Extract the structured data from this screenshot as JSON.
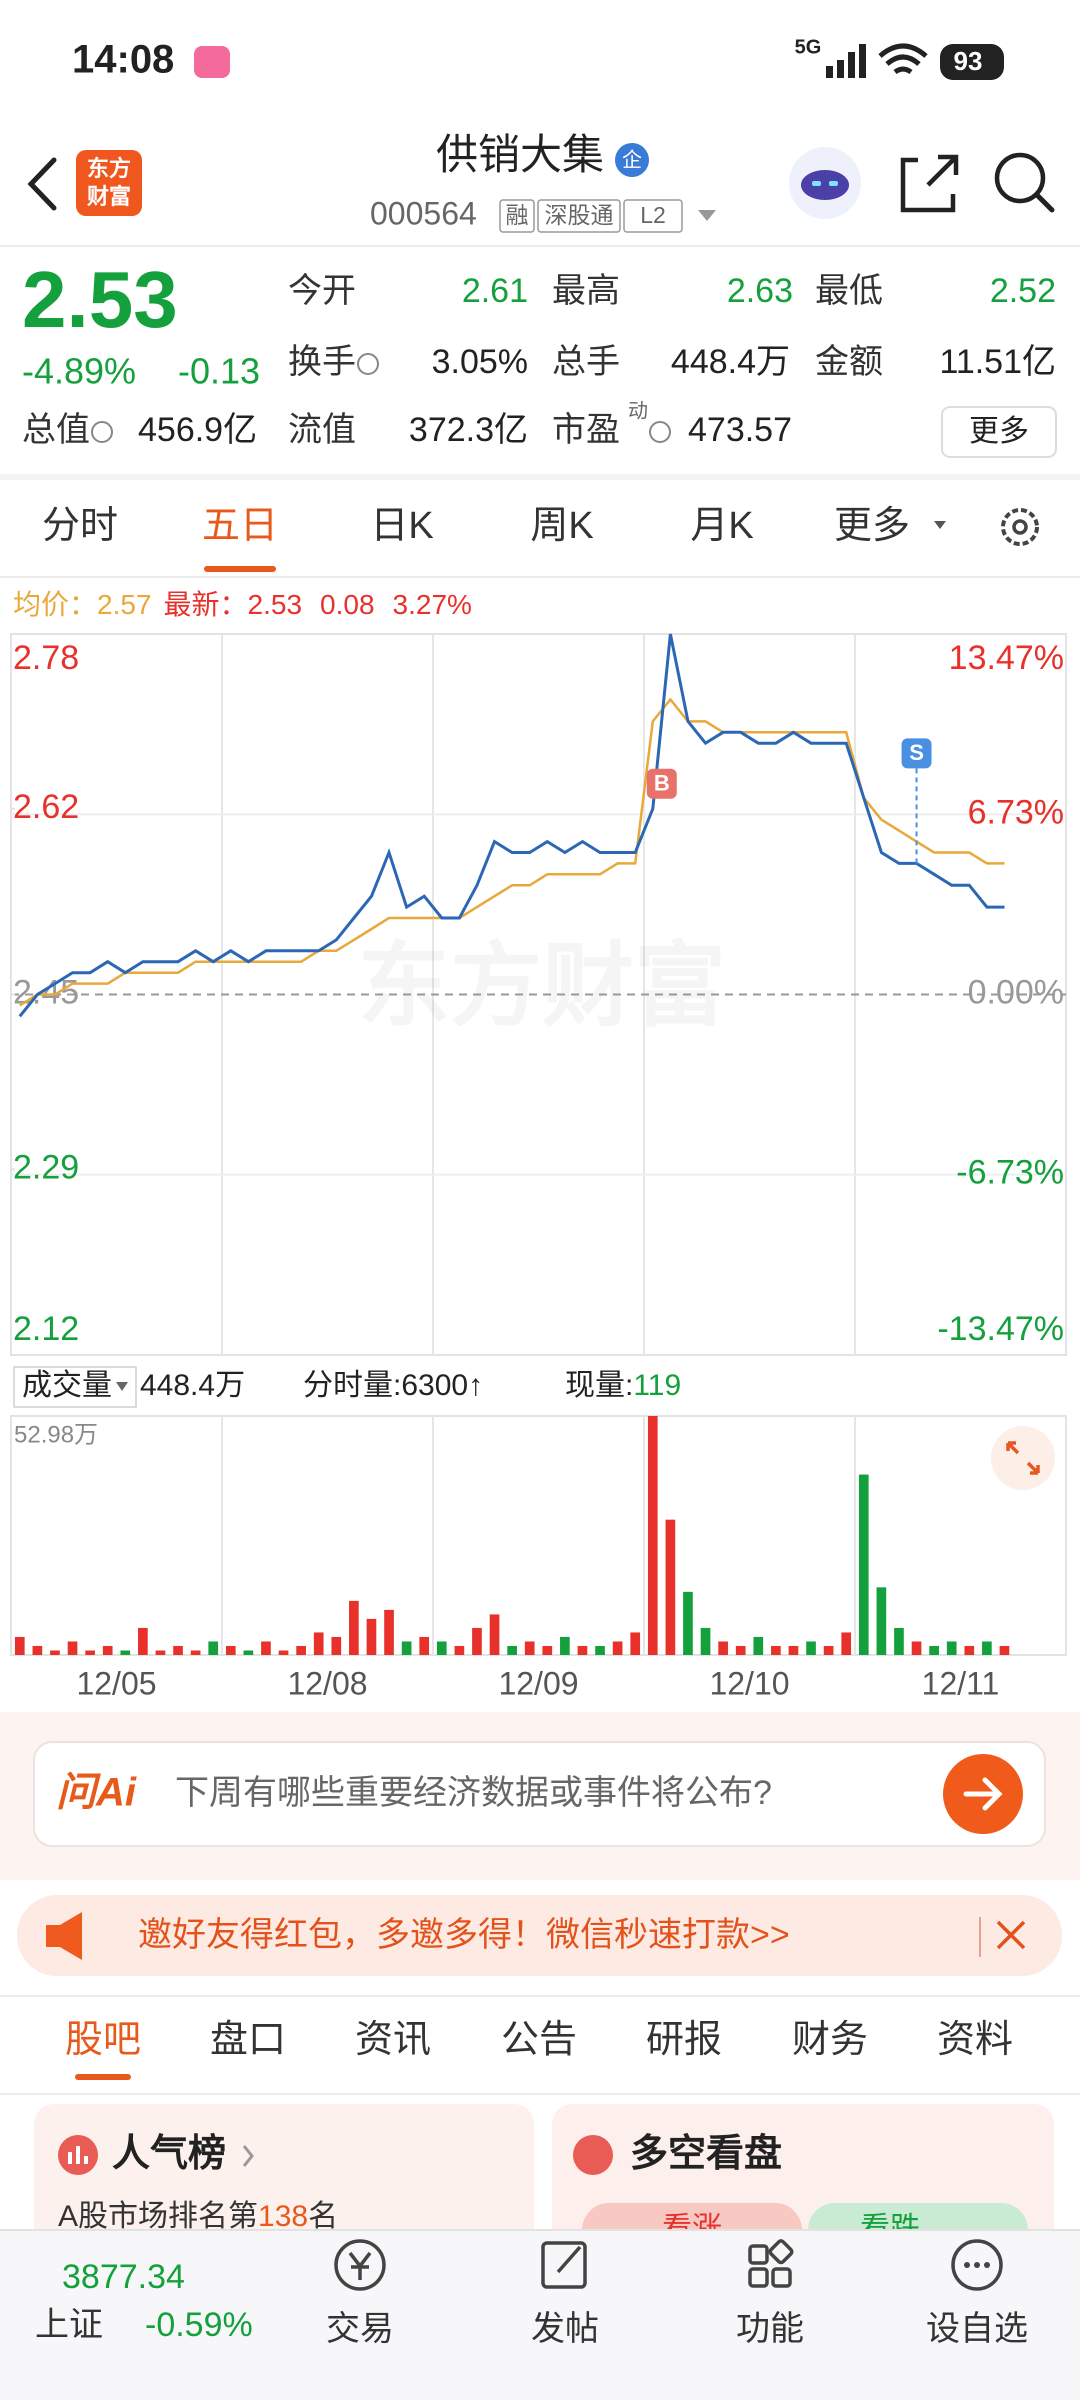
{
  "status_bar": {
    "time": "14:08",
    "network": "5G",
    "battery": "93"
  },
  "header": {
    "logo_line1": "东方",
    "logo_line2": "财富",
    "title": "供销大集",
    "badge": "企",
    "code": "000564",
    "tags": [
      "融",
      "深股通",
      "L2"
    ]
  },
  "quote": {
    "price": "2.53",
    "change_pct": "-4.89%",
    "change": "-0.13",
    "fields": [
      {
        "label": "今开",
        "value": "2.61"
      },
      {
        "label": "最高",
        "value": "2.63"
      },
      {
        "label": "最低",
        "value": "2.52"
      },
      {
        "label": "换手",
        "value": "3.05%"
      },
      {
        "label": "总手",
        "value": "448.4万"
      },
      {
        "label": "金额",
        "value": "11.51亿"
      },
      {
        "label": "总值",
        "value": "456.9亿"
      },
      {
        "label": "流值",
        "value": "372.3亿"
      },
      {
        "label": "市盈",
        "value": "473.57"
      }
    ],
    "pe_sup": "动",
    "more": "更多"
  },
  "tabs": [
    "分时",
    "五日",
    "日K",
    "周K",
    "月K",
    "更多"
  ],
  "selected_tab": 1,
  "legend": {
    "avg": "2.57",
    "last": "2.53",
    "change": "0.08",
    "change_pct": "3.27%"
  },
  "chart_data": [
    {
      "type": "line",
      "watermark": "东方财富",
      "trade_marks": [
        "B",
        "S"
      ],
      "ylim": [
        2.12,
        2.78
      ],
      "yticks": [
        2.12,
        2.29,
        2.45,
        2.62,
        2.78
      ],
      "y2lim": [
        -13.47,
        13.47
      ],
      "y2ticks": [
        {
          "value": -13.47,
          "label": "-13.47%"
        },
        {
          "value": -6.73,
          "label": "-6.73%"
        },
        {
          "value": 0,
          "label": "0.00%"
        },
        {
          "value": 6.73,
          "label": "6.73%"
        },
        {
          "value": 13.47,
          "label": "13.47%"
        }
      ],
      "up_color": "#e8312a",
      "down_color": "#14a03c",
      "grid": true,
      "series": [
        {
          "name": "最新：",
          "color": "#2b67b5",
          "values": [
            2.43,
            2.45,
            2.46,
            2.47,
            2.47,
            2.48,
            2.47,
            2.48,
            2.48,
            2.48,
            2.49,
            2.48,
            2.49,
            2.48,
            2.49,
            2.49,
            2.49,
            2.49,
            2.5,
            2.52,
            2.54,
            2.58,
            2.53,
            2.54,
            2.52,
            2.52,
            2.55,
            2.59,
            2.58,
            2.58,
            2.59,
            2.58,
            2.59,
            2.58,
            2.58,
            2.58,
            2.62,
            2.78,
            2.7,
            2.68,
            2.69,
            2.69,
            2.68,
            2.68,
            2.69,
            2.68,
            2.68,
            2.68,
            2.63,
            2.58,
            2.57,
            2.57,
            2.56,
            2.55,
            2.55,
            2.53,
            2.53
          ]
        },
        {
          "name": "均价：",
          "color": "#e8a83a",
          "values": [
            2.44,
            2.45,
            2.45,
            2.46,
            2.46,
            2.46,
            2.47,
            2.47,
            2.47,
            2.47,
            2.48,
            2.48,
            2.48,
            2.48,
            2.48,
            2.48,
            2.48,
            2.49,
            2.49,
            2.5,
            2.51,
            2.52,
            2.52,
            2.52,
            2.52,
            2.52,
            2.53,
            2.54,
            2.55,
            2.55,
            2.56,
            2.56,
            2.56,
            2.56,
            2.57,
            2.57,
            2.7,
            2.72,
            2.7,
            2.7,
            2.69,
            2.69,
            2.69,
            2.69,
            2.69,
            2.69,
            2.69,
            2.69,
            2.63,
            2.61,
            2.6,
            2.59,
            2.58,
            2.58,
            2.58,
            2.57,
            2.57
          ]
        }
      ]
    },
    {
      "type": "bar",
      "ylim": [
        0,
        52.98
      ],
      "yticks": [
        {
          "value": 52.98,
          "label": "52.98万"
        }
      ],
      "up_color": "#e8312a",
      "down_color": "#14a03c",
      "values": [
        4,
        2,
        1,
        3,
        1,
        2,
        1,
        6,
        1,
        2,
        1,
        3,
        2,
        1,
        3,
        1,
        2,
        5,
        4,
        12,
        8,
        10,
        3,
        4,
        3,
        2,
        6,
        9,
        2,
        3,
        2,
        4,
        2,
        2,
        3,
        5,
        52.98,
        30,
        14,
        6,
        3,
        2,
        4,
        2,
        2,
        3,
        2,
        5,
        40,
        15,
        6,
        3,
        2,
        3,
        2,
        3,
        2
      ]
    }
  ],
  "volume_bar": {
    "label": "成交量",
    "total": "448.4万",
    "tick_volume": "分时量:6300↑",
    "now_label": "现量:",
    "now": "119"
  },
  "dates": [
    "12/05",
    "12/08",
    "12/09",
    "12/10",
    "12/11"
  ],
  "ask_ai": {
    "logo": "问Ai",
    "question": "下周有哪些重要经济数据或事件将公布?"
  },
  "banner": {
    "text": "邀好友得红包，多邀多得！微信秒速打款>>"
  },
  "sub_tabs": [
    "股吧",
    "盘口",
    "资讯",
    "公告",
    "研报",
    "财务",
    "资料"
  ],
  "selected_sub_tab": 0,
  "cards": {
    "popularity": {
      "title": "人气榜",
      "prefix": "A股市场排名第",
      "rank": "138",
      "suffix": "名"
    },
    "sentiment": {
      "title": "多空看盘",
      "bull": "看涨",
      "bear": "看跌"
    }
  },
  "bottom_nav": {
    "index_value": "3877.34",
    "index_name": "上证",
    "index_change": "-0.59%",
    "items": [
      "交易",
      "发帖",
      "功能",
      "设自选"
    ]
  }
}
